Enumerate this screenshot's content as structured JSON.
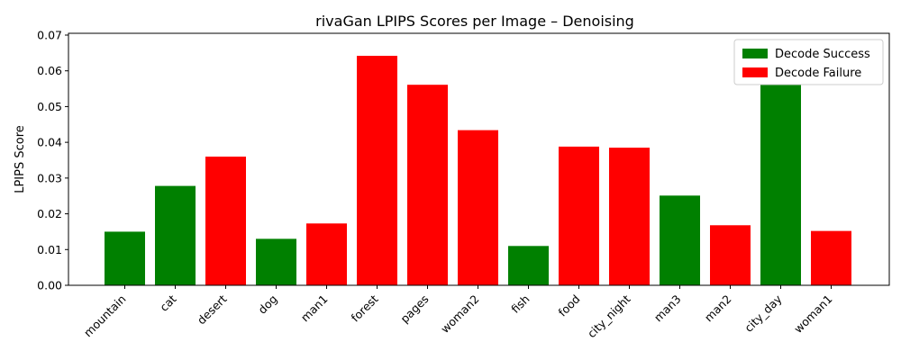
{
  "chart_data": {
    "type": "bar",
    "title": "rivaGan LPIPS Scores per Image – Denoising",
    "xlabel": "",
    "ylabel": "LPIPS Score",
    "ylim": [
      0,
      0.0705
    ],
    "yticks": [
      "0.00",
      "0.01",
      "0.02",
      "0.03",
      "0.04",
      "0.05",
      "0.06",
      "0.07"
    ],
    "categories": [
      "mountain",
      "cat",
      "desert",
      "dog",
      "man1",
      "forest",
      "pages",
      "woman2",
      "fish",
      "food",
      "city_night",
      "man3",
      "man2",
      "city_day",
      "woman1"
    ],
    "values": [
      0.015,
      0.0278,
      0.036,
      0.013,
      0.0173,
      0.0642,
      0.0561,
      0.0434,
      0.011,
      0.0388,
      0.0385,
      0.0251,
      0.0168,
      0.0561,
      0.0152
    ],
    "status": [
      "success",
      "success",
      "failure",
      "success",
      "failure",
      "failure",
      "failure",
      "failure",
      "success",
      "failure",
      "failure",
      "success",
      "failure",
      "success",
      "failure"
    ],
    "legend": [
      {
        "key": "success",
        "label": "Decode Success",
        "color": "#008000"
      },
      {
        "key": "failure",
        "label": "Decode Failure",
        "color": "#ff0000"
      }
    ],
    "legend_position": "top-right",
    "grid": false
  }
}
